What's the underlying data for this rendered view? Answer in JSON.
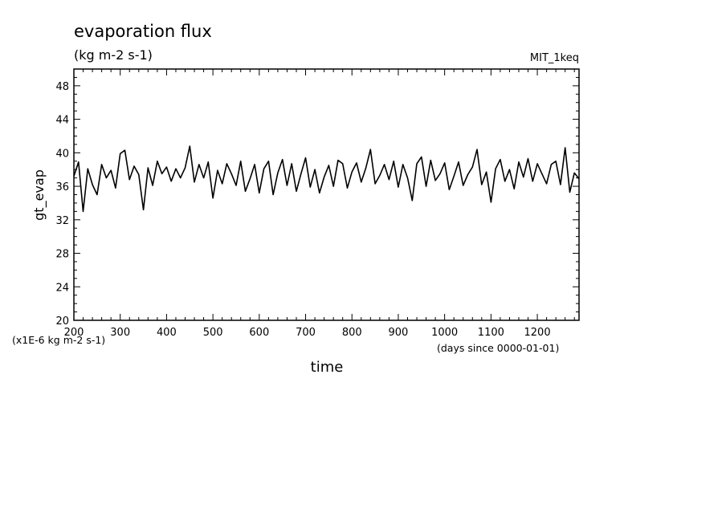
{
  "chart_data": {
    "type": "line",
    "title": "evaporation flux",
    "subtitle": "(kg m-2 s-1)",
    "dataset_label": "MIT_1keq",
    "ylabel": "gt_evap",
    "xlabel": "time",
    "y_units_note": "(x1E-6 kg m-2 s-1)",
    "x_units_note": "(days since 0000-01-01)",
    "xlim": [
      200,
      1290
    ],
    "ylim": [
      20,
      50
    ],
    "x_ticks": [
      200,
      300,
      400,
      500,
      600,
      700,
      800,
      900,
      1000,
      1100,
      1200
    ],
    "y_ticks": [
      20,
      24,
      28,
      32,
      36,
      40,
      44,
      48
    ],
    "grid": false,
    "series": [
      {
        "x": [
          200,
          210,
          220,
          230,
          240,
          250,
          260,
          270,
          280,
          290,
          300,
          310,
          320,
          330,
          340,
          350,
          360,
          370,
          380,
          390,
          400,
          410,
          420,
          430,
          440,
          450,
          460,
          470,
          480,
          490,
          500,
          510,
          520,
          530,
          540,
          550,
          560,
          570,
          580,
          590,
          600,
          610,
          620,
          630,
          640,
          650,
          660,
          670,
          680,
          690,
          700,
          710,
          720,
          730,
          740,
          750,
          760,
          770,
          780,
          790,
          800,
          810,
          820,
          830,
          840,
          850,
          860,
          870,
          880,
          890,
          900,
          910,
          920,
          930,
          940,
          950,
          960,
          970,
          980,
          990,
          1000,
          1010,
          1020,
          1030,
          1040,
          1050,
          1060,
          1070,
          1080,
          1090,
          1100,
          1110,
          1120,
          1130,
          1140,
          1150,
          1160,
          1170,
          1180,
          1190,
          1200,
          1210,
          1220,
          1230,
          1240,
          1250,
          1260,
          1270,
          1280,
          1290
        ],
        "values": [
          37.2,
          38.9,
          33.0,
          38.1,
          36.2,
          35.0,
          38.6,
          37.0,
          37.9,
          35.8,
          39.9,
          40.3,
          36.8,
          38.4,
          37.4,
          33.2,
          38.2,
          36.1,
          39.0,
          37.5,
          38.3,
          36.6,
          38.1,
          37.0,
          38.2,
          40.8,
          36.5,
          38.6,
          37.0,
          38.9,
          34.6,
          37.9,
          36.3,
          38.7,
          37.5,
          36.1,
          39.0,
          35.4,
          36.9,
          38.6,
          35.2,
          38.1,
          39.0,
          35.0,
          37.6,
          39.2,
          36.1,
          38.7,
          35.4,
          37.5,
          39.4,
          35.9,
          38.0,
          35.2,
          37.1,
          38.5,
          36.0,
          39.1,
          38.7,
          35.8,
          37.7,
          38.8,
          36.5,
          38.2,
          40.4,
          36.3,
          37.3,
          38.6,
          36.8,
          39.0,
          35.9,
          38.6,
          37.0,
          34.3,
          38.7,
          39.5,
          36.0,
          39.1,
          36.7,
          37.5,
          38.8,
          35.6,
          37.2,
          38.9,
          36.1,
          37.4,
          38.3,
          40.4,
          36.2,
          37.7,
          34.1,
          38.1,
          39.2,
          36.6,
          38.0,
          35.7,
          38.9,
          37.1,
          39.3,
          36.6,
          38.7,
          37.5,
          36.3,
          38.6,
          39.0,
          36.2,
          40.6,
          35.3,
          37.6,
          36.9
        ]
      }
    ]
  }
}
